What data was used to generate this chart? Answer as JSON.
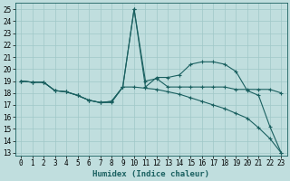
{
  "xlabel": "Humidex (Indice chaleur)",
  "bg_color": "#c0dede",
  "grid_color": "#a0c8c8",
  "line_color": "#1a6060",
  "xlim": [
    -0.5,
    23.5
  ],
  "ylim": [
    12.8,
    25.5
  ],
  "yticks": [
    13,
    14,
    15,
    16,
    17,
    18,
    19,
    20,
    21,
    22,
    23,
    24,
    25
  ],
  "xticks": [
    0,
    1,
    2,
    3,
    4,
    5,
    6,
    7,
    8,
    9,
    10,
    11,
    12,
    13,
    14,
    15,
    16,
    17,
    18,
    19,
    20,
    21,
    22,
    23
  ],
  "line1_x": [
    0,
    1,
    2,
    3,
    4,
    5,
    6,
    7,
    8,
    9,
    10,
    11,
    12,
    13,
    14,
    15,
    16,
    17,
    18,
    19,
    20,
    21,
    22,
    23
  ],
  "line1_y": [
    19.0,
    18.9,
    18.9,
    18.2,
    18.1,
    17.8,
    17.4,
    17.2,
    17.2,
    18.5,
    25.0,
    18.5,
    19.3,
    19.3,
    19.5,
    20.4,
    20.6,
    20.6,
    20.4,
    19.8,
    18.2,
    17.8,
    15.2,
    13.0
  ],
  "line2_x": [
    0,
    1,
    2,
    3,
    4,
    5,
    6,
    7,
    8,
    9,
    10,
    11,
    12,
    13,
    14,
    15,
    16,
    17,
    18,
    19,
    20,
    21,
    22,
    23
  ],
  "line2_y": [
    19.0,
    18.9,
    18.9,
    18.2,
    18.1,
    17.8,
    17.4,
    17.2,
    17.3,
    18.5,
    25.0,
    19.0,
    19.2,
    18.5,
    18.5,
    18.5,
    18.5,
    18.5,
    18.5,
    18.3,
    18.3,
    18.3,
    18.3,
    18.0
  ],
  "line3_x": [
    0,
    1,
    2,
    3,
    4,
    5,
    6,
    7,
    8,
    9,
    10,
    11,
    12,
    13,
    14,
    15,
    16,
    17,
    18,
    19,
    20,
    21,
    22,
    23
  ],
  "line3_y": [
    19.0,
    18.9,
    18.9,
    18.2,
    18.1,
    17.8,
    17.4,
    17.2,
    17.3,
    18.5,
    18.5,
    18.4,
    18.3,
    18.1,
    17.9,
    17.6,
    17.3,
    17.0,
    16.7,
    16.3,
    15.9,
    15.1,
    14.2,
    13.0
  ],
  "tick_fontsize": 5.5,
  "xlabel_fontsize": 6.5,
  "xlabel_fontweight": "bold"
}
